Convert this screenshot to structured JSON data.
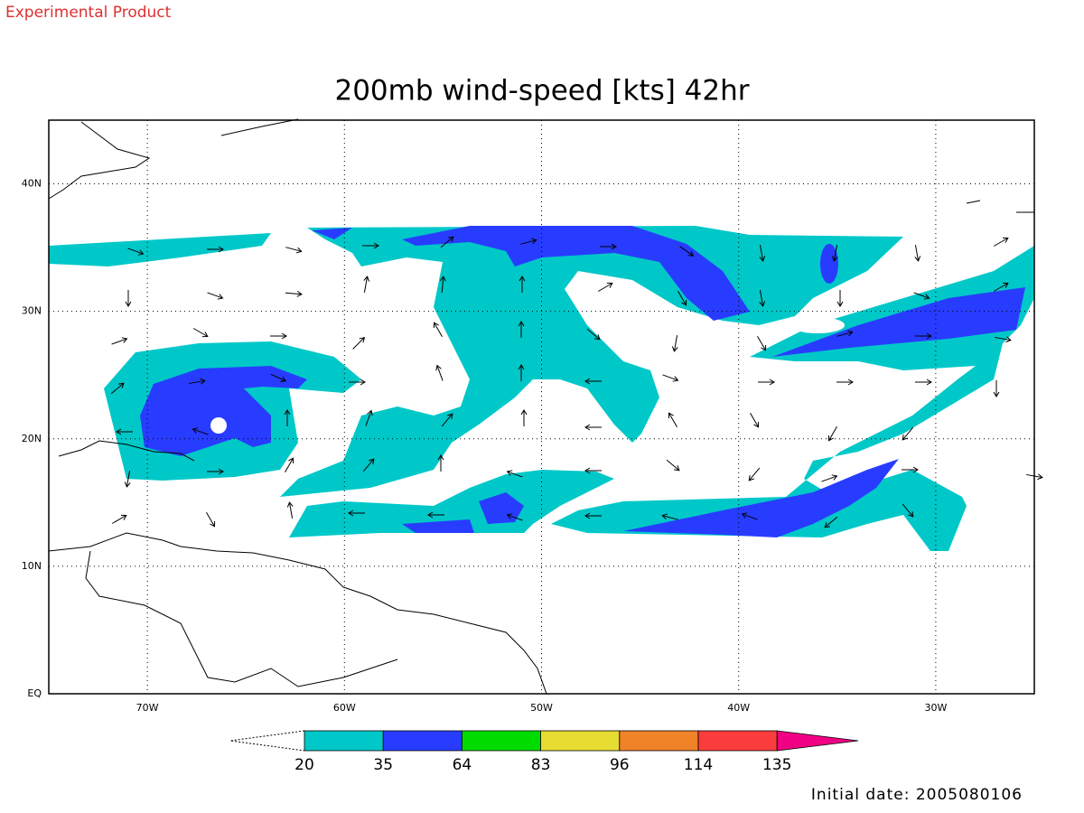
{
  "header": "Experimental Product",
  "title": "200mb wind-speed [kts] 42hr",
  "map": {
    "lonlim": [
      -75,
      -25
    ],
    "latlim": [
      0,
      45
    ],
    "lonticks": [
      {
        "value": -70,
        "label": "70W"
      },
      {
        "value": -60,
        "label": "60W"
      },
      {
        "value": -50,
        "label": "50W"
      },
      {
        "value": -40,
        "label": "40W"
      },
      {
        "value": -30,
        "label": "30W"
      }
    ],
    "latticks": [
      {
        "value": 0,
        "label": "EQ"
      },
      {
        "value": 10,
        "label": "10N"
      },
      {
        "value": 20,
        "label": "20N"
      },
      {
        "value": 30,
        "label": "30N"
      },
      {
        "value": 40,
        "label": "40N"
      }
    ]
  },
  "colorbar": {
    "levels": [
      20,
      35,
      64,
      83,
      96,
      114,
      135
    ],
    "colors": [
      "#00c8c8",
      "#283cff",
      "#00dc00",
      "#e6dc32",
      "#f08228",
      "#fa3c3c",
      "#f00082"
    ]
  },
  "footer": "Initial date: 2005080106"
}
